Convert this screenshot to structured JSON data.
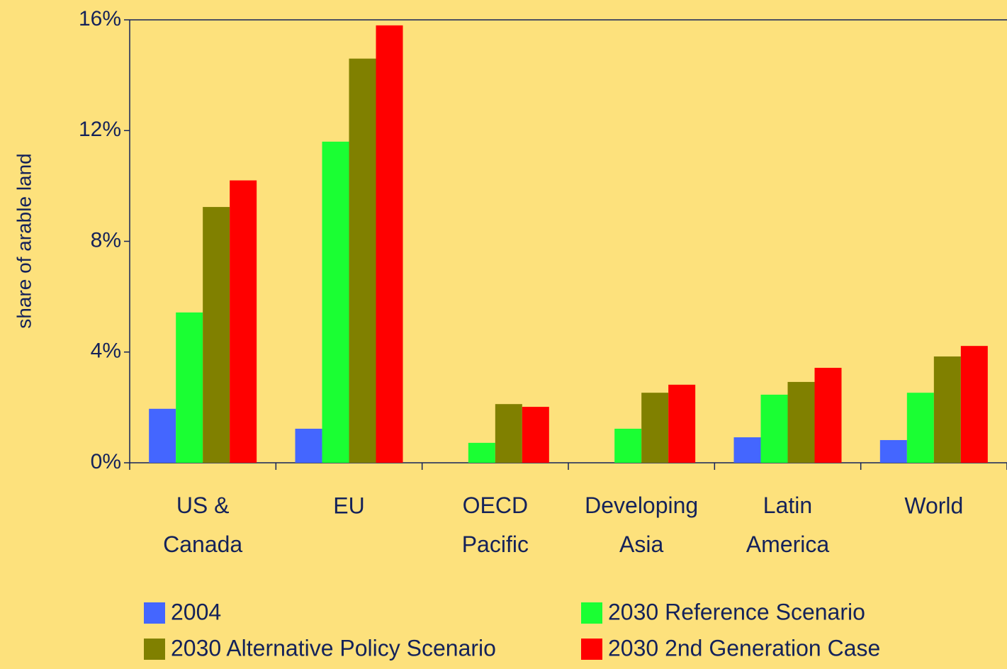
{
  "chart_data": {
    "type": "bar",
    "y_label": "share of arable land",
    "categories": [
      "US & Canada",
      "EU",
      "OECD Pacific",
      "Developing Asia",
      "Latin America",
      "World"
    ],
    "series": [
      {
        "name": "2004",
        "color": "#4466ff",
        "values": [
          1.95,
          1.23,
          null,
          null,
          0.92,
          0.82
        ]
      },
      {
        "name": "2030 Reference Scenario",
        "color": "#1aff33",
        "values": [
          5.43,
          11.6,
          0.72,
          1.23,
          2.46,
          2.53
        ]
      },
      {
        "name": "2030 Alternative Policy Scenario",
        "color": "#808000",
        "values": [
          9.24,
          14.6,
          2.12,
          2.53,
          2.92,
          3.84
        ]
      },
      {
        "name": "2030 2nd Generation Case",
        "color": "#ff0000",
        "values": [
          10.2,
          15.8,
          2.02,
          2.82,
          3.43,
          4.22
        ]
      }
    ],
    "ylim": [
      0,
      16
    ],
    "yticks": [
      {
        "value": 0,
        "label": "0%"
      },
      {
        "value": 4,
        "label": "4%"
      },
      {
        "value": 8,
        "label": "8%"
      },
      {
        "value": 12,
        "label": "12%"
      },
      {
        "value": 16,
        "label": "16%"
      }
    ],
    "legend": "bottom"
  }
}
